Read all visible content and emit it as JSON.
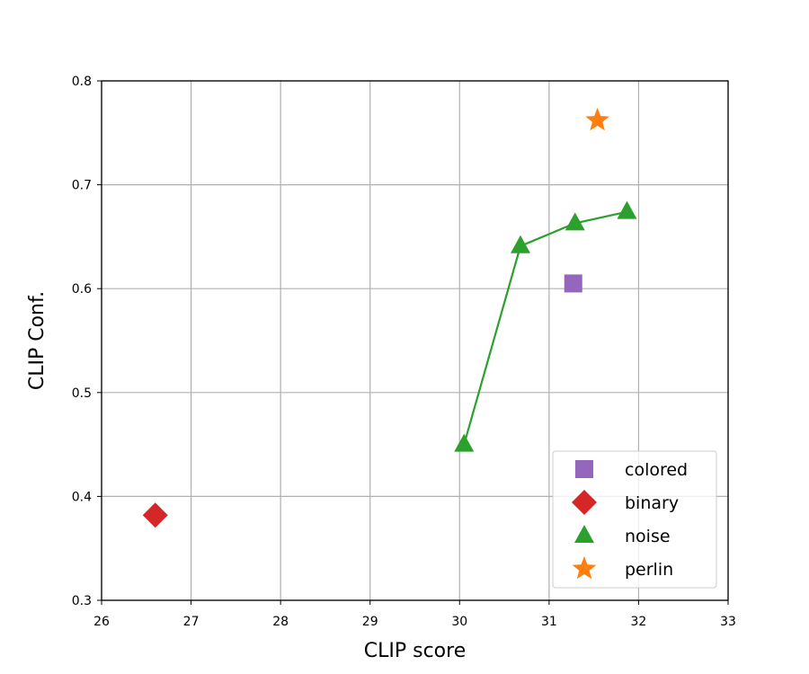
{
  "chart_data": {
    "type": "scatter",
    "xlabel": "CLIP score",
    "ylabel": "CLIP Conf.",
    "xlim": [
      26,
      33
    ],
    "ylim": [
      0.3,
      0.8
    ],
    "xticks": [
      "26",
      "27",
      "28",
      "29",
      "30",
      "31",
      "32",
      "33"
    ],
    "yticks": [
      "0.3",
      "0.4",
      "0.5",
      "0.6",
      "0.7",
      "0.8"
    ],
    "grid": true,
    "legend_position": "lower-right",
    "series": [
      {
        "name": "colored",
        "marker": "square",
        "color": "#9467bd",
        "line": false,
        "points": [
          {
            "x": 31.27,
            "y": 0.605
          }
        ]
      },
      {
        "name": "binary",
        "marker": "diamond",
        "color": "#d62728",
        "line": false,
        "points": [
          {
            "x": 26.6,
            "y": 0.382
          }
        ]
      },
      {
        "name": "noise",
        "marker": "triangle",
        "color": "#2ca02c",
        "line": true,
        "points": [
          {
            "x": 30.05,
            "y": 0.45
          },
          {
            "x": 30.68,
            "y": 0.641
          },
          {
            "x": 31.29,
            "y": 0.663
          },
          {
            "x": 31.87,
            "y": 0.674
          }
        ]
      },
      {
        "name": "perlin",
        "marker": "star",
        "color": "#ff7f0e",
        "line": false,
        "points": [
          {
            "x": 31.54,
            "y": 0.762
          }
        ]
      }
    ]
  }
}
